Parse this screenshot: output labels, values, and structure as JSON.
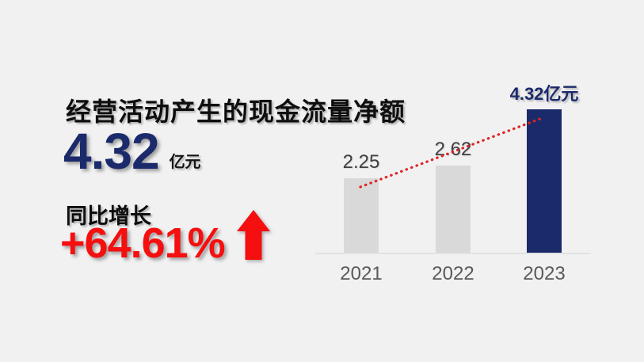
{
  "headline": {
    "title": "经营活动产生的现金流量净额",
    "value": "4.32",
    "unit": "亿元"
  },
  "growth": {
    "label": "同比增长",
    "value": "+64.61%"
  },
  "icons": {
    "growth_arrow": "up-block-arrow"
  },
  "colors": {
    "background": "#f1f1f2",
    "navy_accent": "#1b2a6b",
    "red_accent": "#f50f0f",
    "trendline_red": "#e02424",
    "bar_gray": "#d9d9d9",
    "value_label_gray": "#3f3f3f",
    "year_label_gray": "#595959",
    "axis_line": "#e2e2e2"
  },
  "chart_data": {
    "type": "bar",
    "categories": [
      "2021",
      "2022",
      "2023"
    ],
    "values": [
      2.25,
      2.62,
      4.32
    ],
    "value_labels": [
      "2.25",
      "2.62",
      "4.32亿元"
    ],
    "bar_colors": [
      "#d9d9d9",
      "#d9d9d9",
      "#1b2a6b"
    ],
    "highlight_index": 2,
    "unit": "亿元",
    "ylim": [
      0,
      5
    ],
    "grid": false,
    "legend": false,
    "trendline": {
      "type": "dotted",
      "color": "#e02424",
      "from_category": "2021",
      "to_category": "2023"
    }
  }
}
